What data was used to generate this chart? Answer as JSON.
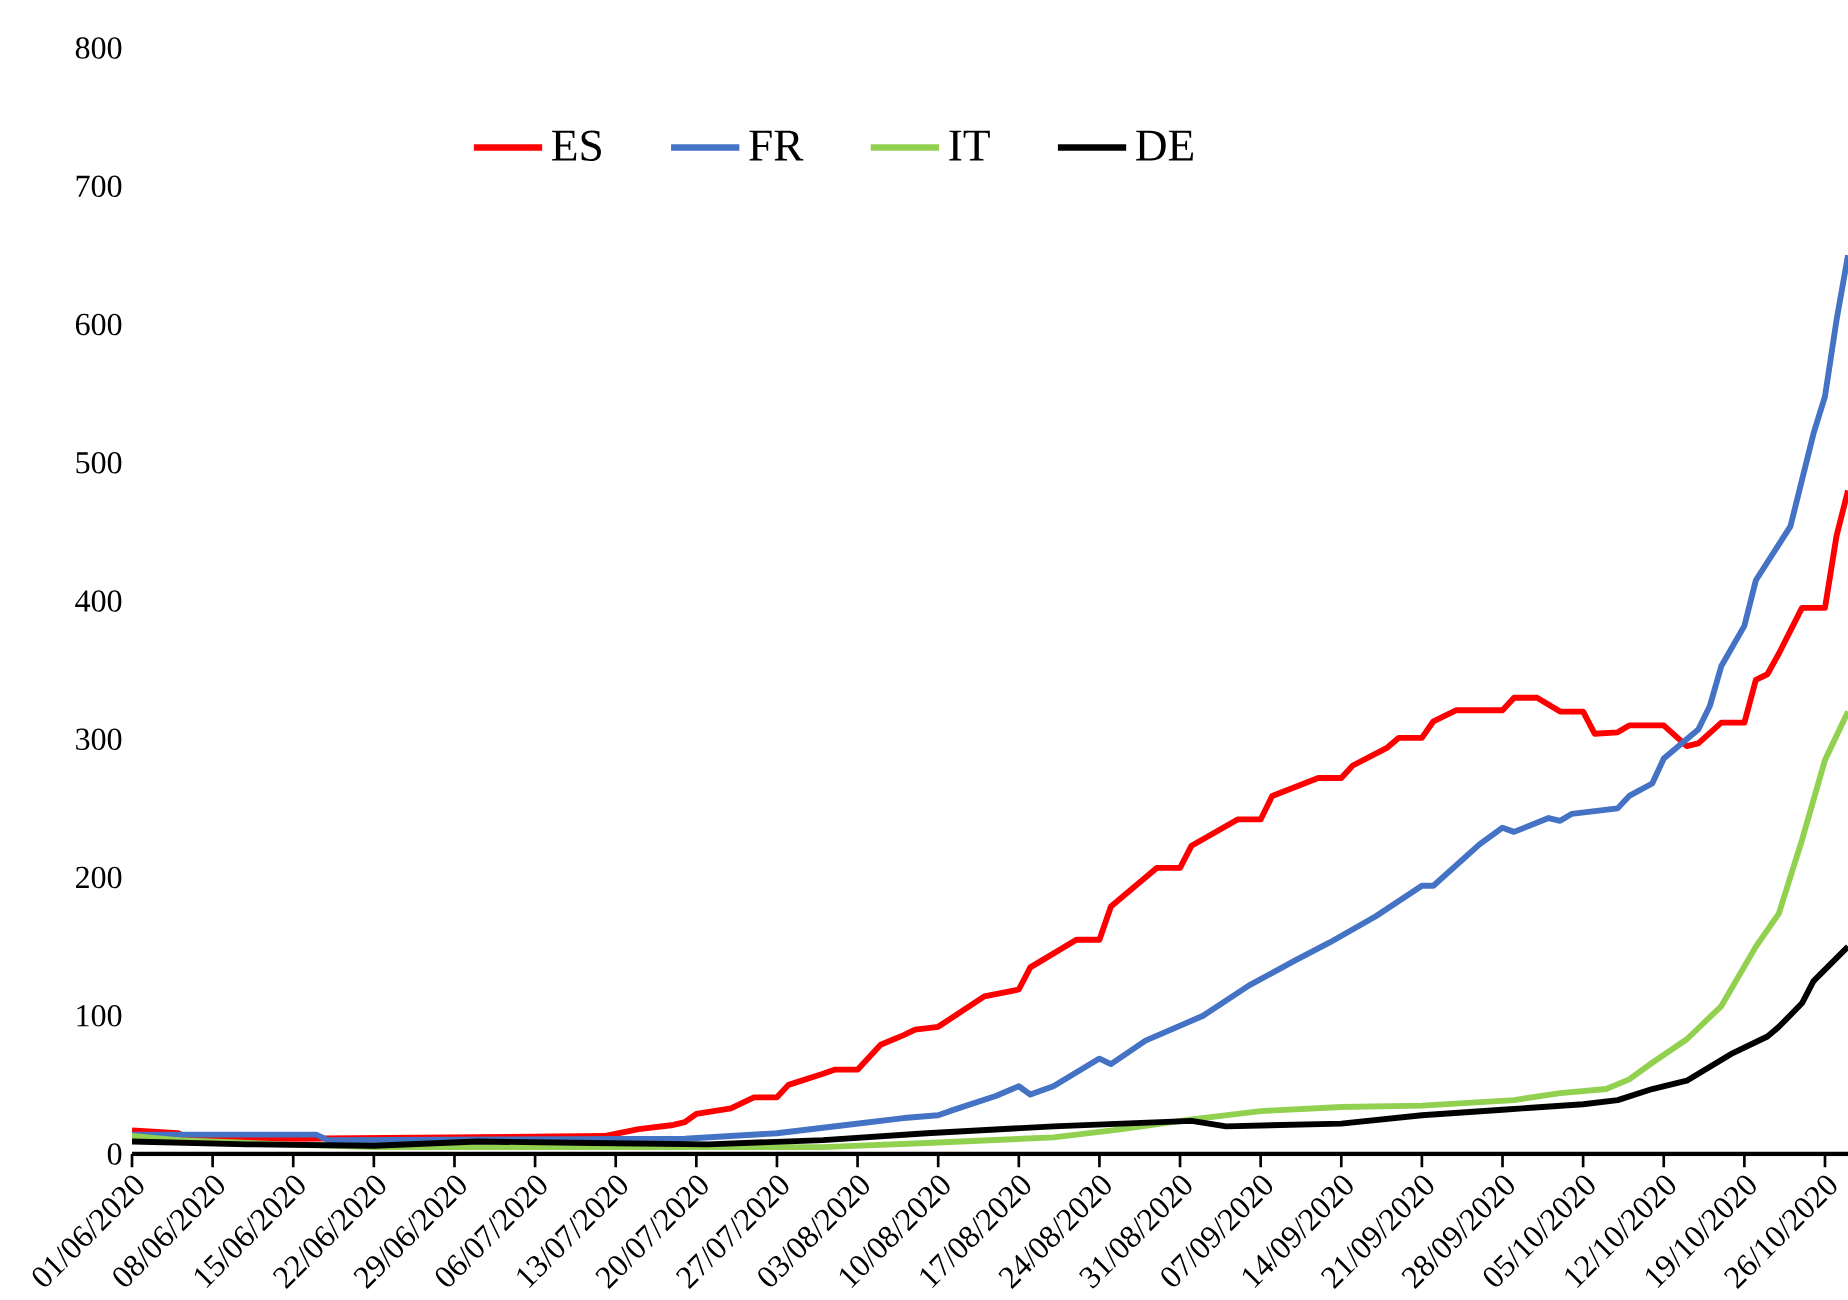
{
  "chart_data": {
    "type": "line",
    "xlim": [
      "2020-06-01",
      "2020-10-28"
    ],
    "xticks": [
      {
        "value": "2020-06-01",
        "label": "01/06/2020"
      },
      {
        "value": "2020-06-08",
        "label": "08/06/2020"
      },
      {
        "value": "2020-06-15",
        "label": "15/06/2020"
      },
      {
        "value": "2020-06-22",
        "label": "22/06/2020"
      },
      {
        "value": "2020-06-29",
        "label": "29/06/2020"
      },
      {
        "value": "2020-07-06",
        "label": "06/07/2020"
      },
      {
        "value": "2020-07-13",
        "label": "13/07/2020"
      },
      {
        "value": "2020-07-20",
        "label": "20/07/2020"
      },
      {
        "value": "2020-07-27",
        "label": "27/07/2020"
      },
      {
        "value": "2020-08-03",
        "label": "03/08/2020"
      },
      {
        "value": "2020-08-10",
        "label": "10/08/2020"
      },
      {
        "value": "2020-08-17",
        "label": "17/08/2020"
      },
      {
        "value": "2020-08-24",
        "label": "24/08/2020"
      },
      {
        "value": "2020-08-31",
        "label": "31/08/2020"
      },
      {
        "value": "2020-09-07",
        "label": "07/09/2020"
      },
      {
        "value": "2020-09-14",
        "label": "14/09/2020"
      },
      {
        "value": "2020-09-21",
        "label": "21/09/2020"
      },
      {
        "value": "2020-09-28",
        "label": "28/09/2020"
      },
      {
        "value": "2020-10-05",
        "label": "05/10/2020"
      },
      {
        "value": "2020-10-12",
        "label": "12/10/2020"
      },
      {
        "value": "2020-10-19",
        "label": "19/10/2020"
      },
      {
        "value": "2020-10-26",
        "label": "26/10/2020"
      }
    ],
    "ylim": [
      0,
      800
    ],
    "yticks": [
      0,
      100,
      200,
      300,
      400,
      500,
      600,
      700,
      800
    ],
    "legend": "top",
    "series": [
      {
        "name": "ES",
        "color": "#ff0000",
        "x": [
          "2020-06-01",
          "2020-06-05",
          "2020-06-06",
          "2020-06-15",
          "2020-07-12",
          "2020-07-15",
          "2020-07-18",
          "2020-07-19",
          "2020-07-20",
          "2020-07-23",
          "2020-07-25",
          "2020-07-27",
          "2020-07-28",
          "2020-07-31",
          "2020-08-01",
          "2020-08-03",
          "2020-08-05",
          "2020-08-07",
          "2020-08-08",
          "2020-08-10",
          "2020-08-14",
          "2020-08-17",
          "2020-08-18",
          "2020-08-22",
          "2020-08-24",
          "2020-08-25",
          "2020-08-29",
          "2020-08-31",
          "2020-09-01",
          "2020-09-05",
          "2020-09-07",
          "2020-09-08",
          "2020-09-12",
          "2020-09-14",
          "2020-09-15",
          "2020-09-18",
          "2020-09-19",
          "2020-09-21",
          "2020-09-22",
          "2020-09-24",
          "2020-09-28",
          "2020-09-29",
          "2020-10-01",
          "2020-10-03",
          "2020-10-05",
          "2020-10-06",
          "2020-10-08",
          "2020-10-09",
          "2020-10-12",
          "2020-10-14",
          "2020-10-15",
          "2020-10-17",
          "2020-10-19",
          "2020-10-20",
          "2020-10-21",
          "2020-10-22",
          "2020-10-24",
          "2020-10-26",
          "2020-10-27",
          "2020-10-28"
        ],
        "values": [
          17,
          15,
          11,
          11,
          13,
          18,
          21,
          23,
          29,
          33,
          41,
          41,
          50,
          58,
          61,
          61,
          79,
          86,
          90,
          92,
          114,
          119,
          135,
          155,
          155,
          179,
          207,
          207,
          223,
          242,
          242,
          259,
          272,
          272,
          281,
          294,
          301,
          301,
          313,
          321,
          321,
          330,
          330,
          320,
          320,
          304,
          305,
          310,
          310,
          295,
          297,
          312,
          312,
          343,
          347,
          362,
          395,
          395,
          447,
          480
        ]
      },
      {
        "name": "FR",
        "color": "#4472c4",
        "x": [
          "2020-06-01",
          "2020-06-17",
          "2020-06-18",
          "2020-07-19",
          "2020-07-27",
          "2020-08-02",
          "2020-08-07",
          "2020-08-10",
          "2020-08-11",
          "2020-08-15",
          "2020-08-17",
          "2020-08-18",
          "2020-08-20",
          "2020-08-24",
          "2020-08-25",
          "2020-08-28",
          "2020-09-02",
          "2020-09-06",
          "2020-09-10",
          "2020-09-13",
          "2020-09-17",
          "2020-09-21",
          "2020-09-22",
          "2020-09-26",
          "2020-09-28",
          "2020-09-29",
          "2020-10-02",
          "2020-10-03",
          "2020-10-04",
          "2020-10-08",
          "2020-10-09",
          "2020-10-11",
          "2020-10-12",
          "2020-10-15",
          "2020-10-16",
          "2020-10-17",
          "2020-10-19",
          "2020-10-20",
          "2020-10-22",
          "2020-10-23",
          "2020-10-25",
          "2020-10-26",
          "2020-10-27",
          "2020-10-28"
        ],
        "values": [
          14,
          14,
          10,
          11,
          15,
          21,
          26,
          28,
          31,
          42,
          49,
          43,
          49,
          69,
          65,
          82,
          100,
          122,
          140,
          153,
          172,
          194,
          194,
          224,
          236,
          233,
          243,
          241,
          246,
          250,
          259,
          268,
          286,
          307,
          324,
          353,
          382,
          415,
          441,
          454,
          521,
          548,
          603,
          650
        ]
      },
      {
        "name": "IT",
        "color": "#92d050",
        "x": [
          "2020-06-01",
          "2020-06-05",
          "2020-06-14",
          "2020-06-22",
          "2020-07-31",
          "2020-08-09",
          "2020-08-20",
          "2020-08-26",
          "2020-09-01",
          "2020-09-07",
          "2020-09-14",
          "2020-09-21",
          "2020-09-29",
          "2020-10-03",
          "2020-10-07",
          "2020-10-09",
          "2020-10-11",
          "2020-10-14",
          "2020-10-17",
          "2020-10-20",
          "2020-10-22",
          "2020-10-24",
          "2020-10-26",
          "2020-10-28"
        ],
        "values": [
          13,
          10,
          7,
          5,
          5,
          8,
          12,
          18,
          25,
          31,
          34,
          35,
          39,
          44,
          47,
          54,
          66,
          83,
          107,
          150,
          174,
          227,
          285,
          320
        ]
      },
      {
        "name": "DE",
        "color": "#000000",
        "x": [
          "2020-06-01",
          "2020-06-11",
          "2020-06-22",
          "2020-07-01",
          "2020-07-11",
          "2020-07-21",
          "2020-07-31",
          "2020-08-09",
          "2020-08-20",
          "2020-09-01",
          "2020-09-04",
          "2020-09-14",
          "2020-09-21",
          "2020-09-28",
          "2020-10-05",
          "2020-10-08",
          "2020-10-11",
          "2020-10-14",
          "2020-10-18",
          "2020-10-21",
          "2020-10-22",
          "2020-10-24",
          "2020-10-25",
          "2020-10-28"
        ],
        "values": [
          9,
          7,
          6,
          9,
          8,
          7,
          10,
          15,
          20,
          24,
          20,
          22,
          28,
          32,
          36,
          39,
          47,
          53,
          73,
          85,
          92,
          109,
          125,
          150
        ]
      }
    ]
  }
}
